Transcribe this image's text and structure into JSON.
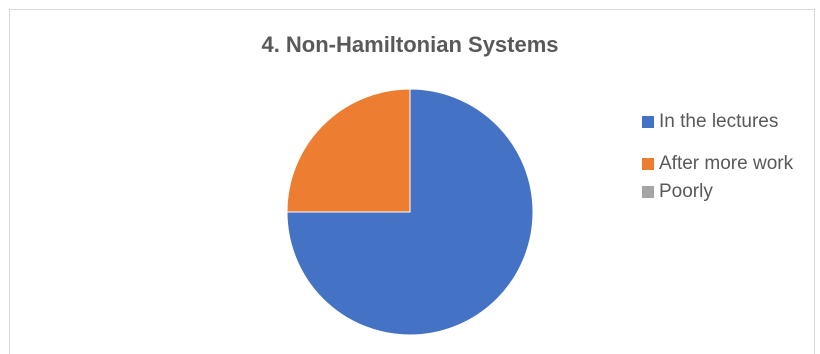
{
  "chart_data": {
    "type": "pie",
    "title": "4. Non-Hamiltonian Systems",
    "categories": [
      "In the lectures",
      "After more work",
      "Poorly"
    ],
    "values": [
      75,
      25,
      0
    ],
    "colors": [
      "#4472c4",
      "#ed7d31",
      "#a5a5a5"
    ],
    "legend_position": "right"
  }
}
